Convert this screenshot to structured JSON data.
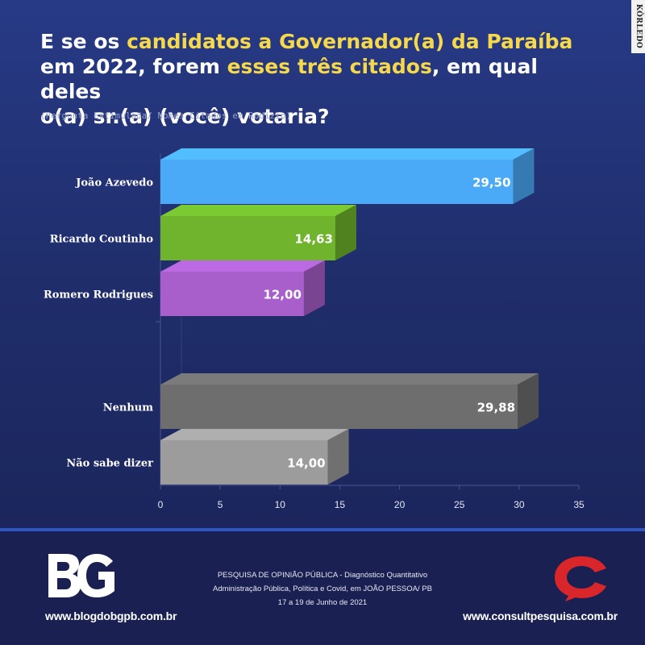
{
  "title": {
    "part1": "E se os ",
    "highlight1": "candidatos a Governador(a) da Paraíba",
    "part2": "em 2022, forem ",
    "highlight2": "esses três citados",
    "part3": ", em qual deles",
    "part4": "o(a) sr.(a) (você) votaria?"
  },
  "subtitle": "(Pergunta Estimulada/ Nomes Citados em Rodízio)",
  "watermark": "KÔRLEDO",
  "chart_data": {
    "type": "bar",
    "orientation": "horizontal",
    "categories": [
      "João Azevedo",
      "Ricardo Coutinho",
      "Romero Rodrigues",
      "Nenhum",
      "Não sabe dizer"
    ],
    "values": [
      29.5,
      14.63,
      12.0,
      29.88,
      14.0
    ],
    "value_labels": [
      "29,50",
      "14,63",
      "12,00",
      "29,88",
      "14,00"
    ],
    "colors": [
      "#4aaaf7",
      "#6fb42c",
      "#a85fcb",
      "#6e6e6e",
      "#9c9c9c"
    ],
    "xlim": [
      0,
      35
    ],
    "xticks": [
      0,
      5,
      10,
      15,
      20,
      25,
      30,
      35
    ],
    "grid": false,
    "legend": "none"
  },
  "footer": {
    "logo_left_text": "BG",
    "site_left": "www.blogdobgpb.com.br",
    "line1": "PESQUISA DE OPINIÃO PÚBLICA - Diagnóstico Quantitativo",
    "line2": "Administração Pública, Política e Covid, em JOÃO PESSOA/ PB",
    "line3": "17 a 19 de Junho de 2021",
    "site_right": "www.consultpesquisa.com.br",
    "colors": {
      "consult_red": "#d8262a",
      "divider": "#2f56c0"
    }
  }
}
